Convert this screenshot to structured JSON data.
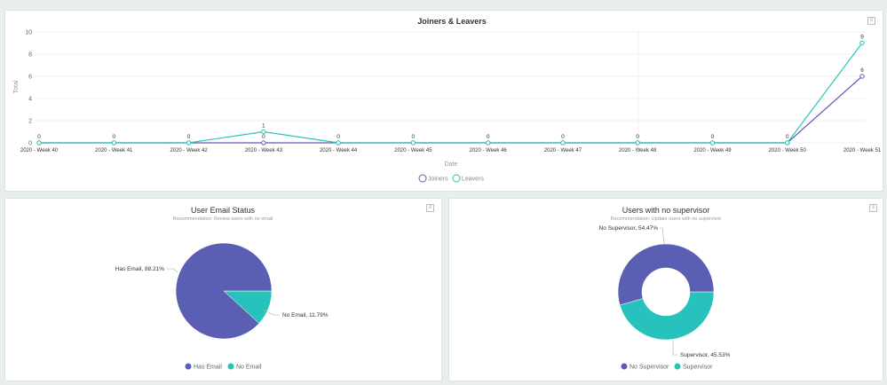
{
  "colors": {
    "joiners": "#5b5fb3",
    "leavers": "#2ec4b6",
    "pie_primary": "#5b5fb3",
    "pie_secondary": "#27c2bb"
  },
  "chart_data": [
    {
      "type": "line",
      "title": "Joiners & Leavers",
      "xlabel": "Date",
      "ylabel": "Total",
      "ylim": [
        0,
        10
      ],
      "yticks": [
        0,
        2,
        4,
        6,
        8,
        10
      ],
      "grid": true,
      "legend": "bottom",
      "categories": [
        "2020 - Week 40",
        "2020 - Week 41",
        "2020 - Week 42",
        "2020 - Week 43",
        "2020 - Week 44",
        "2020 - Week 45",
        "2020 - Week 46",
        "2020 - Week 47",
        "2020 - Week 48",
        "2020 - Week 49",
        "2020 - Week 50",
        "2020 - Week 51"
      ],
      "series": [
        {
          "name": "Joiners",
          "values": [
            0,
            0,
            0,
            0,
            0,
            0,
            0,
            0,
            0,
            0,
            0,
            6
          ]
        },
        {
          "name": "Leavers",
          "values": [
            0,
            0,
            0,
            1,
            0,
            0,
            0,
            0,
            0,
            0,
            0,
            9
          ]
        }
      ]
    },
    {
      "type": "pie",
      "title": "User Email Status",
      "subtitle": "Recommendation: Review users with no email",
      "legend": "bottom",
      "slices": [
        {
          "name": "Has Email",
          "value": 88.21,
          "label": "Has Email, 88.21%"
        },
        {
          "name": "No Email",
          "value": 11.79,
          "label": "No Email, 11.79%"
        }
      ]
    },
    {
      "type": "pie",
      "donut": true,
      "title": "Users with no supervisor",
      "subtitle": "Recommendation: Update users with no supervisor",
      "legend": "bottom",
      "slices": [
        {
          "name": "No Supervisor",
          "value": 54.47,
          "label": "No Supervisor, 54.47%"
        },
        {
          "name": "Supervisor",
          "value": 45.53,
          "label": "Supervisor, 45.53%"
        }
      ]
    }
  ]
}
